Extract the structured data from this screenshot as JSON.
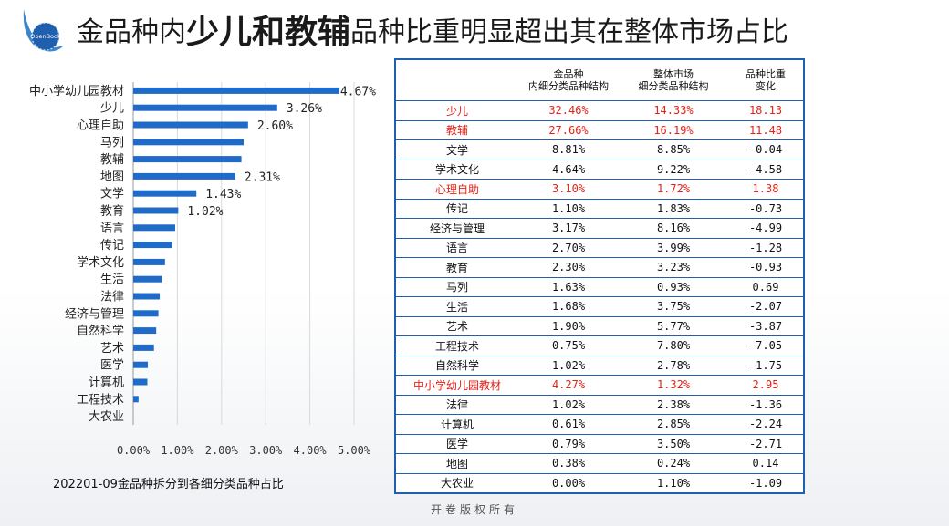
{
  "logo": {
    "text": "OpenBook"
  },
  "title": {
    "part1": "金品种内",
    "part2": "少儿和教辅",
    "part3": "品种比重明显超出其在整体市场占比"
  },
  "chart_data": {
    "type": "bar",
    "orientation": "horizontal",
    "categories": [
      "中小学幼儿园教材",
      "少儿",
      "心理自助",
      "马列",
      "教辅",
      "地图",
      "文学",
      "教育",
      "语言",
      "传记",
      "学术文化",
      "生活",
      "法律",
      "经济与管理",
      "自然科学",
      "艺术",
      "医学",
      "计算机",
      "工程技术",
      "大农业"
    ],
    "values": [
      4.67,
      3.26,
      2.6,
      2.5,
      2.45,
      2.31,
      1.43,
      1.02,
      0.95,
      0.88,
      0.72,
      0.65,
      0.6,
      0.57,
      0.52,
      0.47,
      0.33,
      0.32,
      0.12,
      0.0
    ],
    "data_labels": [
      "4.67%",
      "3.26%",
      "2.60%",
      "",
      "",
      "2.31%",
      "1.43%",
      "1.02%",
      "",
      "",
      "",
      "",
      "",
      "",
      "",
      "",
      "",
      "",
      "",
      ""
    ],
    "x_ticks": [
      "0.00%",
      "1.00%",
      "2.00%",
      "3.00%",
      "4.00%",
      "5.00%"
    ],
    "xlim": [
      0,
      5
    ],
    "bar_color": "#1f6bc7",
    "title": "202201-09金品种拆分到各细分类品种占比"
  },
  "table": {
    "headers": [
      "",
      "金品种\n内细分类品种结构",
      "整体市场\n细分类品种结构",
      "品种比重\n变化"
    ],
    "highlight_color": "#e62117",
    "rows": [
      {
        "cat": "少儿",
        "a": "32.46%",
        "b": "14.33%",
        "c": "18.13",
        "hl": true
      },
      {
        "cat": "教辅",
        "a": "27.66%",
        "b": "16.19%",
        "c": "11.48",
        "hl": true
      },
      {
        "cat": "文学",
        "a": "8.81%",
        "b": "8.85%",
        "c": "-0.04",
        "hl": false
      },
      {
        "cat": "学术文化",
        "a": "4.64%",
        "b": "9.22%",
        "c": "-4.58",
        "hl": false
      },
      {
        "cat": "心理自助",
        "a": "3.10%",
        "b": "1.72%",
        "c": "1.38",
        "hl": true
      },
      {
        "cat": "传记",
        "a": "1.10%",
        "b": "1.83%",
        "c": "-0.73",
        "hl": false
      },
      {
        "cat": "经济与管理",
        "a": "3.17%",
        "b": "8.16%",
        "c": "-4.99",
        "hl": false
      },
      {
        "cat": "语言",
        "a": "2.70%",
        "b": "3.99%",
        "c": "-1.28",
        "hl": false
      },
      {
        "cat": "教育",
        "a": "2.30%",
        "b": "3.23%",
        "c": "-0.93",
        "hl": false
      },
      {
        "cat": "马列",
        "a": "1.63%",
        "b": "0.93%",
        "c": "0.69",
        "hl": false
      },
      {
        "cat": "生活",
        "a": "1.68%",
        "b": "3.75%",
        "c": "-2.07",
        "hl": false
      },
      {
        "cat": "艺术",
        "a": "1.90%",
        "b": "5.77%",
        "c": "-3.87",
        "hl": false
      },
      {
        "cat": "工程技术",
        "a": "0.75%",
        "b": "7.80%",
        "c": "-7.05",
        "hl": false
      },
      {
        "cat": "自然科学",
        "a": "1.02%",
        "b": "2.78%",
        "c": "-1.75",
        "hl": false
      },
      {
        "cat": "中小学幼儿园教材",
        "a": "4.27%",
        "b": "1.32%",
        "c": "2.95",
        "hl": true
      },
      {
        "cat": "法律",
        "a": "1.02%",
        "b": "2.38%",
        "c": "-1.36",
        "hl": false
      },
      {
        "cat": "计算机",
        "a": "0.61%",
        "b": "2.85%",
        "c": "-2.24",
        "hl": false
      },
      {
        "cat": "医学",
        "a": "0.79%",
        "b": "3.50%",
        "c": "-2.71",
        "hl": false
      },
      {
        "cat": "地图",
        "a": "0.38%",
        "b": "0.24%",
        "c": "0.14",
        "hl": false
      },
      {
        "cat": "大农业",
        "a": "0.00%",
        "b": "1.10%",
        "c": "-1.09",
        "hl": false
      }
    ]
  },
  "footer": "开卷版权所有"
}
